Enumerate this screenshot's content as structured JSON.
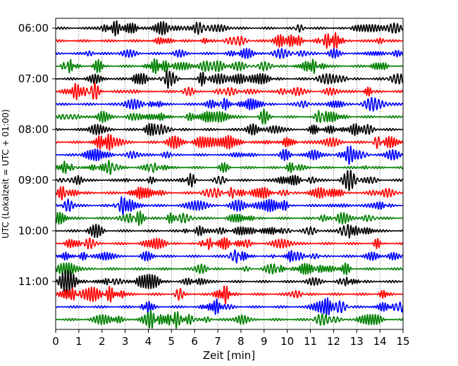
{
  "chart_data": {
    "type": "line",
    "title": "",
    "xlabel": "Zeit  [min]",
    "ylabel": "UTC (Lokalzeit = UTC + 01:00)",
    "xlim": [
      0,
      15
    ],
    "x_ticks": [
      "0",
      "1",
      "2",
      "3",
      "4",
      "5",
      "6",
      "7",
      "8",
      "9",
      "10",
      "11",
      "12",
      "13",
      "14",
      "15"
    ],
    "hour_labels": [
      "06:00",
      "07:00",
      "08:00",
      "09:00",
      "10:00",
      "11:00"
    ],
    "trace_interval_min": 15,
    "trace_count": 24,
    "trace_colors": [
      "#000000",
      "#ff0000",
      "#0000ff",
      "#008000"
    ],
    "grid": "vertical dotted at each minute",
    "legend": "none",
    "waveform": "continuous seismogram, oscillating around each trace baseline"
  }
}
